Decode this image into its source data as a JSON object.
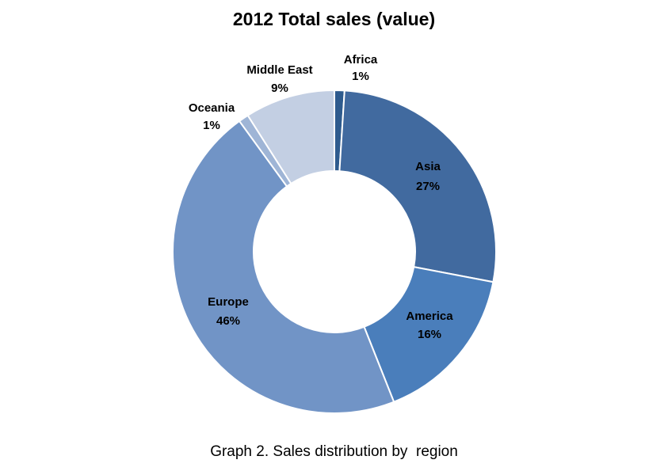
{
  "chart_data": {
    "type": "pie",
    "variant": "donut",
    "title": "2012 Total sales (value)",
    "caption": "Graph 2. Sales distribution by  region",
    "slices": [
      {
        "label": "Africa",
        "value": 1,
        "value_text": "1%",
        "color": "#2e5b8e"
      },
      {
        "label": "Asia",
        "value": 27,
        "value_text": "27%",
        "color": "#416a9f"
      },
      {
        "label": "America",
        "value": 16,
        "value_text": "16%",
        "color": "#4a7ebb"
      },
      {
        "label": "Europe",
        "value": 46,
        "value_text": "46%",
        "color": "#7194c6"
      },
      {
        "label": "Oceania",
        "value": 1,
        "value_text": "1%",
        "color": "#9fb5d6"
      },
      {
        "label": "Middle East",
        "value": 9,
        "value_text": "9%",
        "color": "#c3cfe3"
      }
    ],
    "legend": "none"
  }
}
